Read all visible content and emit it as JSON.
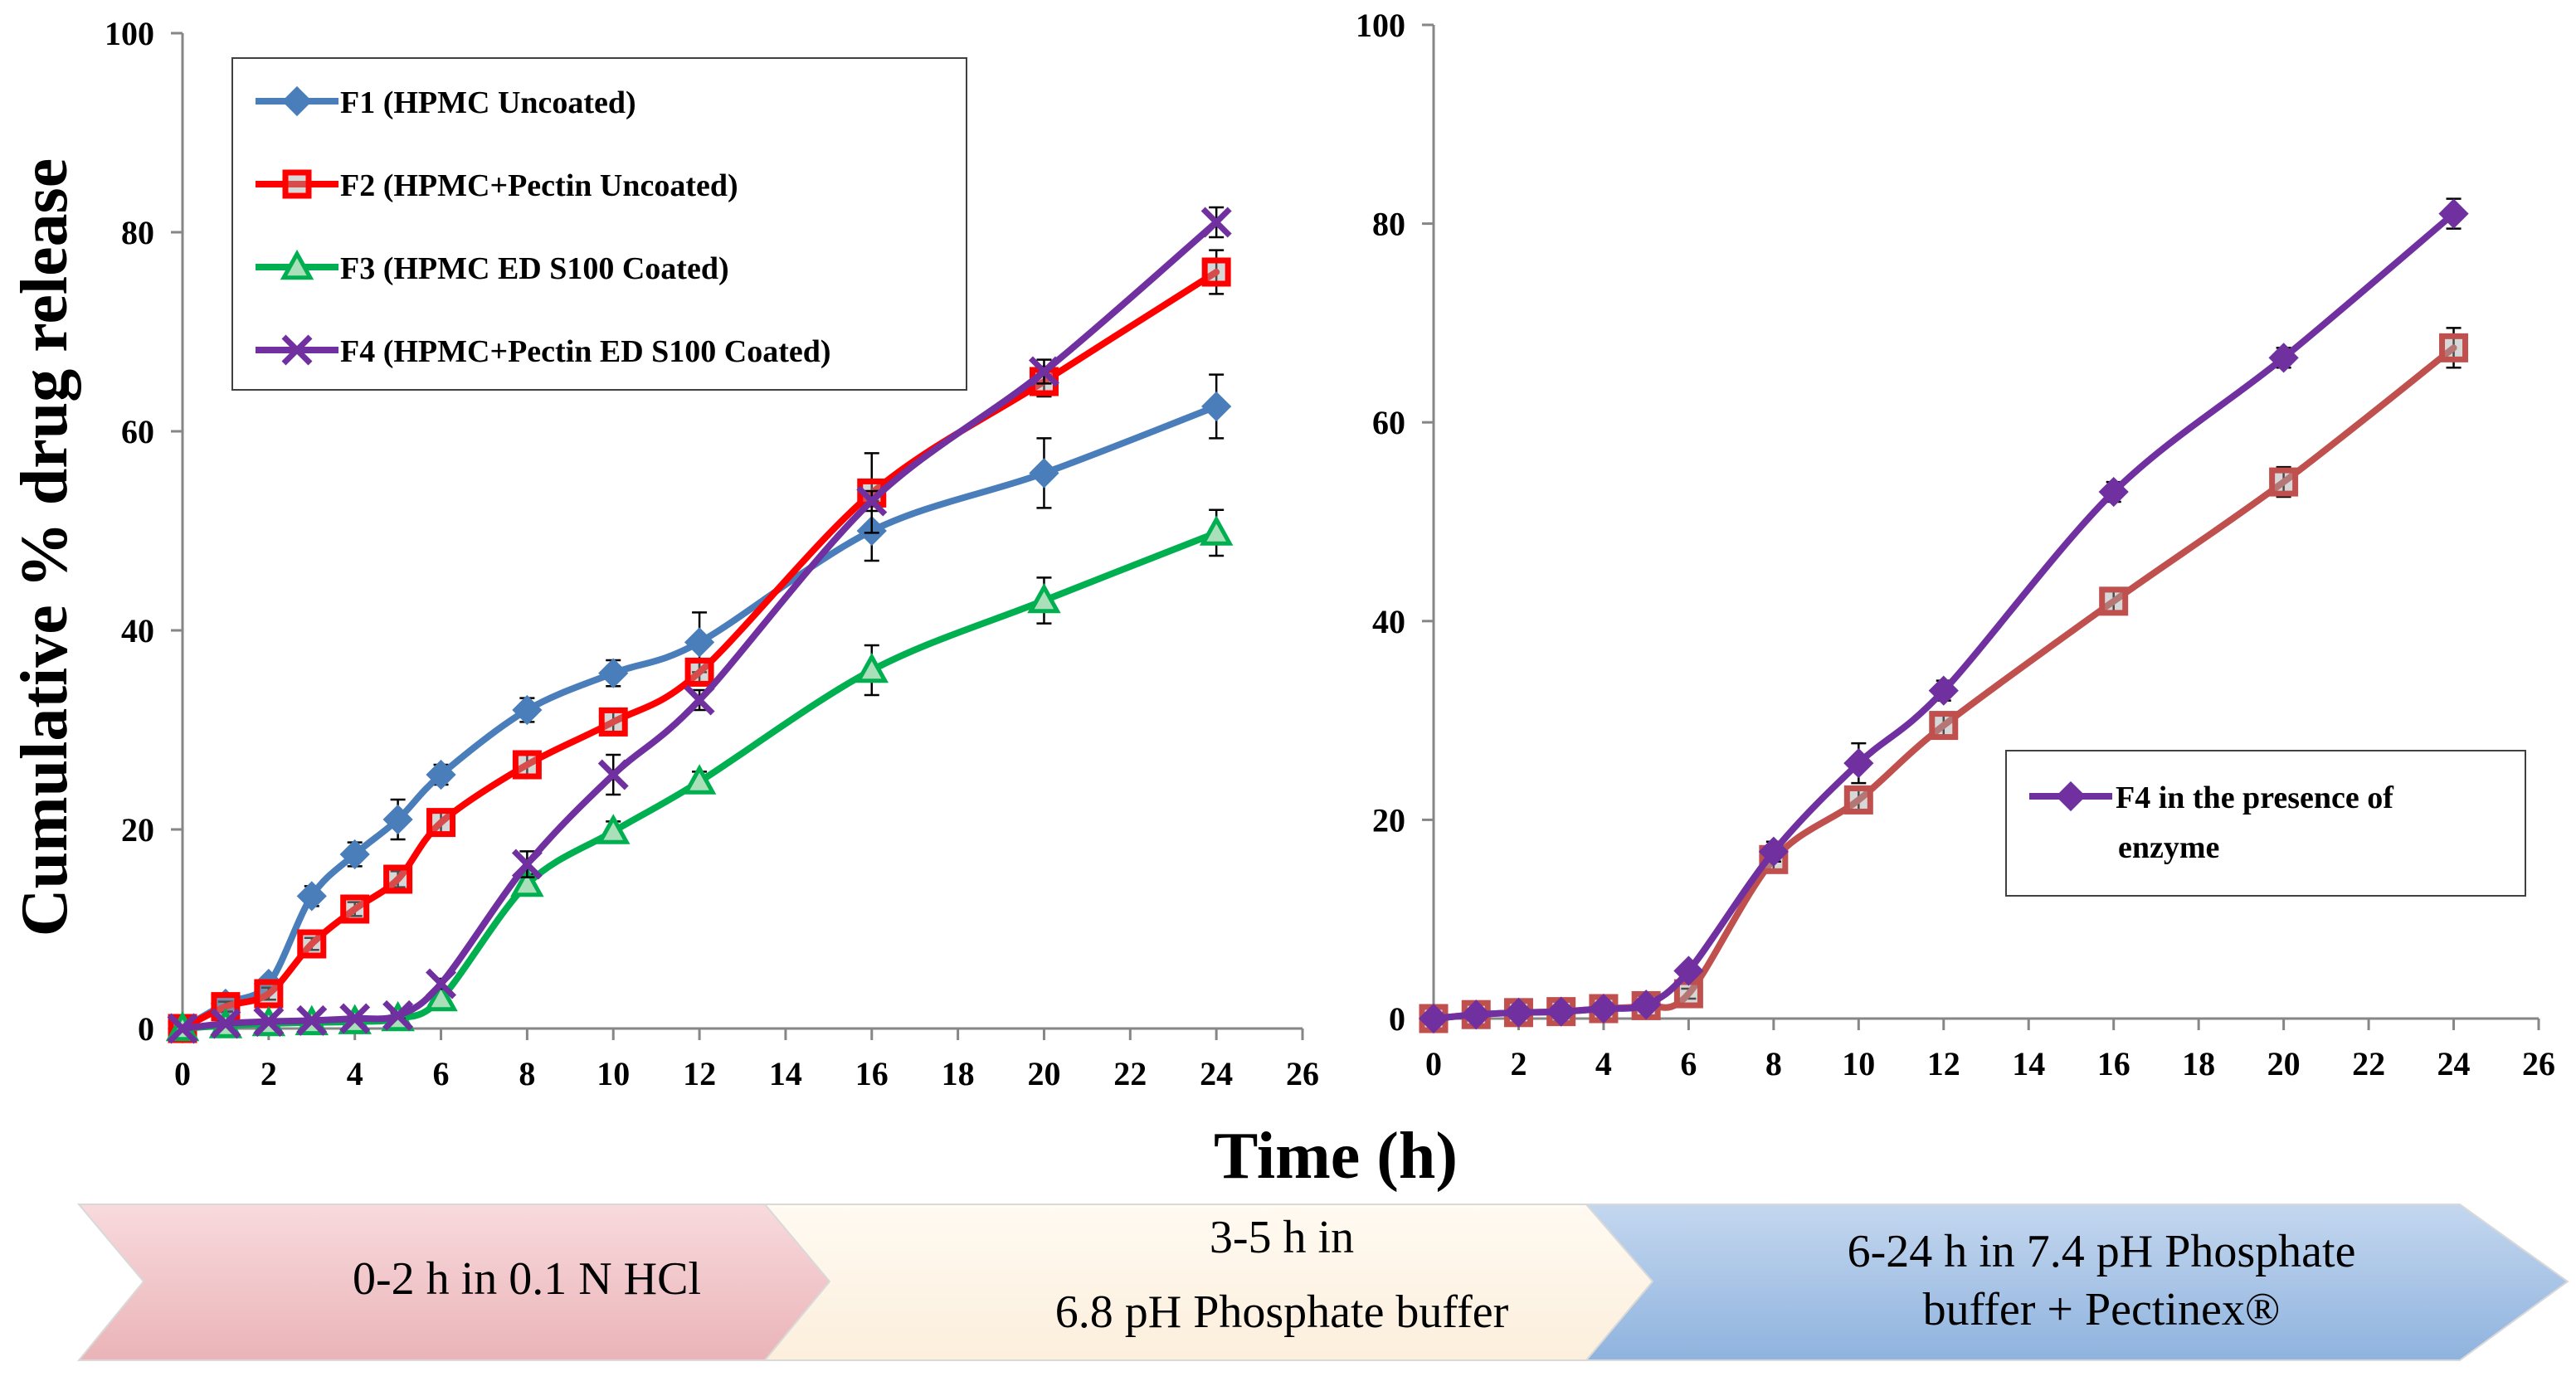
{
  "chart_data": [
    {
      "type": "line",
      "panel": "left",
      "ylabel": "Cumulative %  drug release",
      "ylim": [
        0,
        100
      ],
      "yticks": [
        0,
        20,
        40,
        60,
        80,
        100
      ],
      "xlim": [
        0,
        26
      ],
      "xticks": [
        0,
        2,
        4,
        6,
        8,
        10,
        12,
        14,
        16,
        18,
        20,
        22,
        24,
        26
      ],
      "error_bars": true,
      "legend_position": "top-left",
      "x": [
        0,
        1,
        2,
        3,
        4,
        5,
        6,
        8,
        10,
        12,
        16,
        20,
        24
      ],
      "series": [
        {
          "name": "F1 (HPMC Uncoated)",
          "color": "#4a7ebb",
          "marker": "diamond",
          "values": [
            0,
            2.5,
            4.5,
            13.3,
            17.5,
            21,
            25.5,
            32,
            35.7,
            38.8,
            50,
            55.8,
            62.5
          ],
          "errors": [
            0,
            0.5,
            0.6,
            1,
            1.2,
            2,
            1,
            1.2,
            1.3,
            3,
            3,
            3.5,
            3.2
          ]
        },
        {
          "name": "F2 (HPMC+Pectin Uncoated)",
          "color": "#ff0000",
          "marker": "square",
          "values": [
            0,
            2.2,
            3.5,
            8.5,
            12,
            15,
            20.7,
            26.5,
            30.8,
            35.8,
            53.8,
            65,
            76
          ],
          "errors": [
            0,
            0.5,
            0.6,
            0.6,
            0.7,
            0.8,
            1,
            1,
            1,
            1,
            4,
            1.5,
            2.2
          ]
        },
        {
          "name": "F3 (HPMC ED S100 Coated)",
          "color": "#00b050",
          "marker": "triangle",
          "values": [
            0,
            0.3,
            0.5,
            0.6,
            0.7,
            1,
            3,
            14.5,
            19.8,
            24.8,
            36,
            43,
            49.8
          ],
          "errors": [
            0,
            0.2,
            0.2,
            0.2,
            0.2,
            0.3,
            0.5,
            1,
            1,
            1,
            2.5,
            2.3,
            2.3
          ]
        },
        {
          "name": "F4 (HPMC+Pectin ED S100 Coated)",
          "color": "#7030a0",
          "marker": "x",
          "values": [
            0,
            0.5,
            0.7,
            0.8,
            1,
            1.3,
            4.5,
            16.5,
            25.5,
            33,
            53,
            66,
            81
          ],
          "errors": [
            0,
            0.2,
            0.2,
            0.2,
            0.3,
            0.3,
            0.5,
            1.3,
            2,
            1,
            1,
            1.2,
            1.5
          ]
        }
      ]
    },
    {
      "type": "line",
      "panel": "right",
      "ylim": [
        0,
        100
      ],
      "yticks": [
        0,
        20,
        40,
        60,
        80,
        100
      ],
      "xlim": [
        0,
        26
      ],
      "xticks": [
        0,
        2,
        4,
        6,
        8,
        10,
        12,
        14,
        16,
        18,
        20,
        22,
        24,
        26
      ],
      "error_bars": true,
      "legend_position": "middle-right",
      "x": [
        0,
        1,
        2,
        3,
        4,
        5,
        6,
        8,
        10,
        12,
        16,
        20,
        24
      ],
      "series": [
        {
          "color": "#c0504d",
          "marker": "square",
          "values": [
            0,
            0.4,
            0.6,
            0.7,
            1,
            1.3,
            2.5,
            16,
            22,
            29.5,
            42,
            54,
            67.5
          ],
          "errors": [
            0,
            0.2,
            0.2,
            0.2,
            0.3,
            0.3,
            0.5,
            1,
            1,
            1,
            1,
            1.5,
            2
          ]
        },
        {
          "name": "F4 in the presence of enzyme",
          "color": "#7030a0",
          "marker": "diamond",
          "values": [
            0,
            0.4,
            0.6,
            0.7,
            1,
            1.4,
            4.8,
            16.8,
            25.7,
            33,
            53,
            66.5,
            81
          ],
          "errors": [
            0,
            0.2,
            0.2,
            0.2,
            0.3,
            0.3,
            0.5,
            1,
            2,
            1,
            1,
            1,
            1.5
          ]
        }
      ]
    }
  ],
  "shared": {
    "xlabel": "Time (h)"
  },
  "phases": [
    {
      "label_lines": [
        "0-2 h in 0.1 N HCl"
      ],
      "color": "#f2c6c9"
    },
    {
      "label_lines": [
        "3-5 h in",
        "6.8 pH Phosphate buffer"
      ],
      "color": "#fdf3e4"
    },
    {
      "label_lines": [
        "6-24 h in 7.4 pH Phosphate",
        "buffer + Pectinex®"
      ],
      "color": "#a5c2e5"
    }
  ]
}
